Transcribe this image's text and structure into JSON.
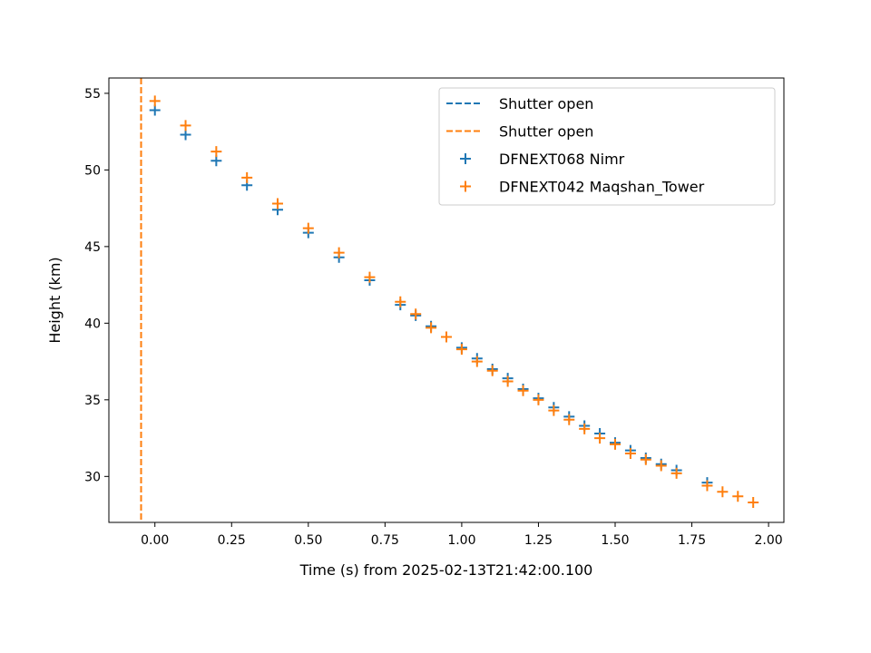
{
  "chart_data": {
    "type": "scatter",
    "title": "",
    "xlabel": "Time (s) from 2025-02-13T21:42:00.100",
    "ylabel": "Height (km)",
    "xlim": [
      -0.15,
      2.05
    ],
    "ylim": [
      27,
      56
    ],
    "xticks": [
      0.0,
      0.25,
      0.5,
      0.75,
      1.0,
      1.25,
      1.5,
      1.75,
      2.0
    ],
    "xtick_labels": [
      "0.00",
      "0.25",
      "0.50",
      "0.75",
      "1.00",
      "1.25",
      "1.50",
      "1.75",
      "2.00"
    ],
    "yticks": [
      30,
      35,
      40,
      45,
      50,
      55
    ],
    "ytick_labels": [
      "30",
      "35",
      "40",
      "45",
      "50",
      "55"
    ],
    "grid": false,
    "legend_position": "top-right",
    "vlines": [
      {
        "name": "Shutter open",
        "x": -0.045,
        "color": "#1f77b4",
        "style": "dashed"
      },
      {
        "name": "Shutter open",
        "x": -0.045,
        "color": "#ff7f0e",
        "style": "dashed"
      }
    ],
    "series": [
      {
        "name": "DFNEXT068 Nimr",
        "color": "#1f77b4",
        "marker": "plus",
        "x": [
          0.0,
          0.1,
          0.2,
          0.3,
          0.4,
          0.5,
          0.6,
          0.7,
          0.8,
          0.85,
          0.9,
          0.95,
          1.0,
          1.05,
          1.1,
          1.15,
          1.2,
          1.25,
          1.3,
          1.35,
          1.4,
          1.45,
          1.5,
          1.55,
          1.6,
          1.65,
          1.7,
          1.8
        ],
        "y": [
          53.9,
          52.3,
          50.6,
          49.0,
          47.4,
          45.9,
          44.3,
          42.8,
          41.2,
          40.5,
          39.8,
          39.1,
          38.4,
          37.7,
          37.0,
          36.4,
          35.7,
          35.1,
          34.5,
          33.9,
          33.3,
          32.8,
          32.2,
          31.7,
          31.2,
          30.8,
          30.4,
          29.6
        ]
      },
      {
        "name": "DFNEXT042 Maqshan_Tower",
        "color": "#ff7f0e",
        "marker": "plus",
        "x": [
          0.0,
          0.1,
          0.2,
          0.3,
          0.4,
          0.5,
          0.6,
          0.7,
          0.8,
          0.85,
          0.9,
          0.95,
          1.0,
          1.05,
          1.1,
          1.15,
          1.2,
          1.25,
          1.3,
          1.35,
          1.4,
          1.45,
          1.5,
          1.55,
          1.6,
          1.65,
          1.7,
          1.8,
          1.85,
          1.9,
          1.95
        ],
        "y": [
          54.5,
          52.9,
          51.2,
          49.5,
          47.8,
          46.2,
          44.6,
          43.0,
          41.4,
          40.6,
          39.7,
          39.1,
          38.3,
          37.5,
          36.9,
          36.2,
          35.6,
          35.0,
          34.3,
          33.7,
          33.1,
          32.5,
          32.1,
          31.5,
          31.1,
          30.7,
          30.2,
          29.4,
          29.0,
          28.7,
          28.3
        ]
      }
    ]
  }
}
